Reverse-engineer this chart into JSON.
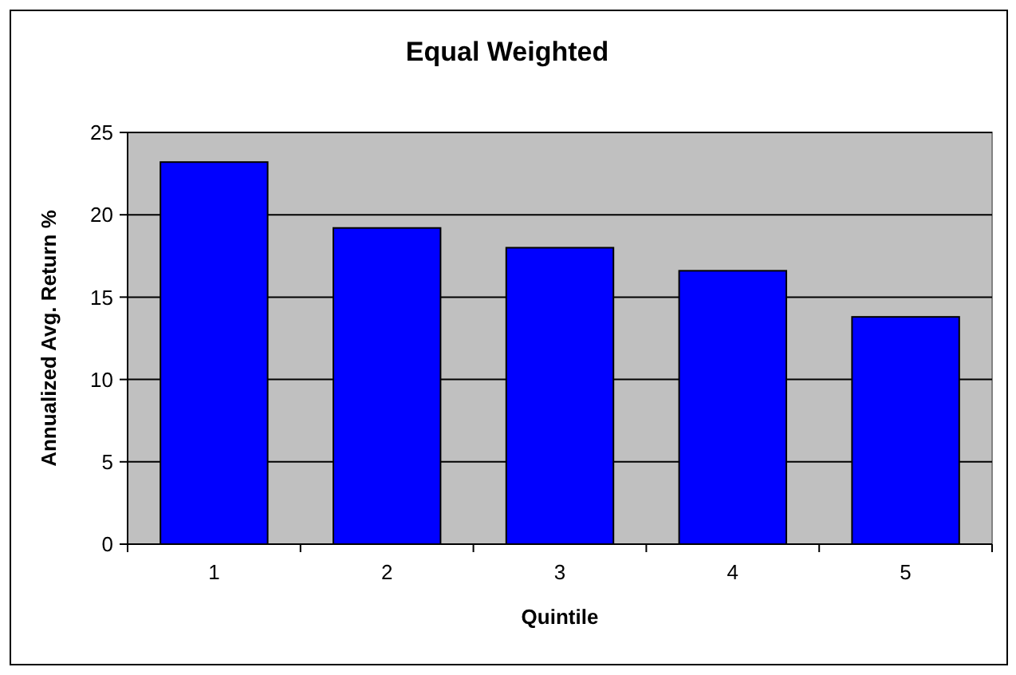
{
  "chart_data": {
    "type": "bar",
    "title": "Equal Weighted",
    "xlabel": "Quintile",
    "ylabel": "Annualized Avg. Return %",
    "categories": [
      "1",
      "2",
      "3",
      "4",
      "5"
    ],
    "values": [
      23.2,
      19.2,
      18.0,
      16.6,
      13.8
    ],
    "color": "#0000ff",
    "ylim": [
      0,
      25
    ],
    "yticks": [
      0,
      5,
      10,
      15,
      20,
      25
    ],
    "grid": "y"
  }
}
